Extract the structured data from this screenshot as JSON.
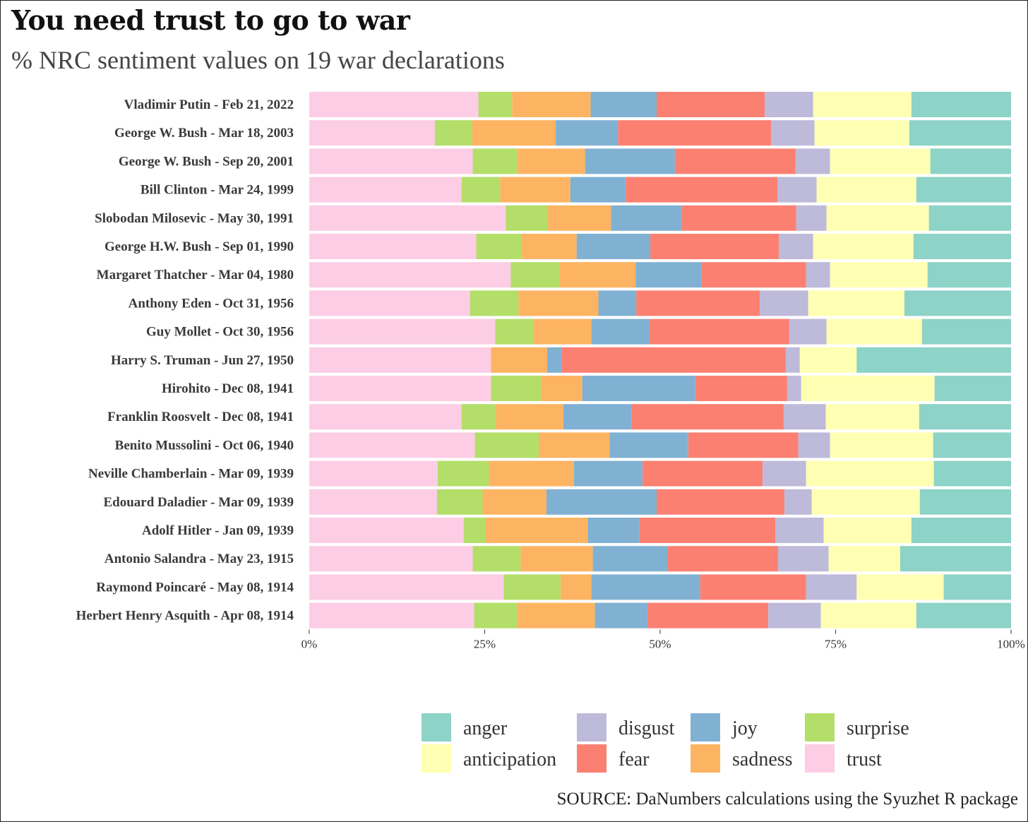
{
  "title": "You need trust to go to war",
  "subtitle": "% NRC sentiment values on 19 war declarations",
  "source": "SOURCE: DaNumbers calculations using the Syuzhet R package",
  "chart_data": {
    "type": "bar",
    "orientation": "horizontal",
    "stacked": "percent",
    "xlim": [
      0,
      100
    ],
    "x_ticks": [
      "0%",
      "25%",
      "50%",
      "75%",
      "100%"
    ],
    "grid": false,
    "legend_position": "bottom",
    "stack_order": [
      "trust",
      "surprise",
      "sadness",
      "joy",
      "fear",
      "disgust",
      "anticipation",
      "anger"
    ],
    "legend_order": [
      "anger",
      "anticipation",
      "disgust",
      "fear",
      "joy",
      "sadness",
      "surprise",
      "trust"
    ],
    "colors": {
      "anger": "#8dd3c7",
      "anticipation": "#ffffb3",
      "disgust": "#bebada",
      "fear": "#fb8072",
      "joy": "#80b1d3",
      "sadness": "#fdb462",
      "surprise": "#b3de69",
      "trust": "#fccde5"
    },
    "categories": [
      "Vladimir Putin - Feb 21, 2022",
      "George W. Bush - Mar 18, 2003",
      "George W. Bush - Sep 20, 2001",
      "Bill Clinton - Mar 24, 1999",
      "Slobodan Milosevic - May 30, 1991",
      "George H.W. Bush - Sep 01, 1990",
      "Margaret Thatcher - Mar 04, 1980",
      "Anthony Eden - Oct 31, 1956",
      "Guy Mollet - Oct 30, 1956",
      "Harry S. Truman - Jun 27, 1950",
      "Hirohito - Dec 08, 1941",
      "Franklin Roosvelt - Dec 08, 1941",
      "Benito Mussolini - Oct 06, 1940",
      "Neville Chamberlain - Mar 09, 1939",
      "Edouard Daladier - Mar 09, 1939",
      "Adolf Hitler - Jan 09, 1939",
      "Antonio Salandra - May 23, 1915",
      "Raymond Poincaré - May 08, 1914",
      "Herbert Henry Asquith - Apr 08, 1914"
    ],
    "series": [
      {
        "name": "trust",
        "values": [
          24.1,
          17.9,
          23.3,
          21.7,
          28.0,
          23.8,
          28.7,
          22.9,
          26.5,
          25.9,
          25.9,
          21.7,
          23.6,
          18.3,
          18.2,
          22.0,
          23.3,
          27.7,
          23.5
        ]
      },
      {
        "name": "surprise",
        "values": [
          4.8,
          5.3,
          6.3,
          5.5,
          5.9,
          6.4,
          6.9,
          6.9,
          5.4,
          0.0,
          7.1,
          4.9,
          9.1,
          7.3,
          6.5,
          3.1,
          6.8,
          8.1,
          6.1
        ]
      },
      {
        "name": "sadness",
        "values": [
          11.2,
          11.9,
          9.7,
          10.0,
          9.1,
          7.9,
          10.9,
          11.4,
          8.3,
          8.0,
          5.9,
          9.6,
          10.1,
          12.1,
          9.1,
          14.6,
          10.3,
          4.4,
          11.1
        ]
      },
      {
        "name": "joy",
        "values": [
          9.4,
          8.9,
          12.8,
          7.9,
          10.1,
          10.5,
          9.4,
          5.4,
          8.3,
          2.1,
          16.1,
          9.7,
          11.2,
          9.8,
          15.7,
          7.3,
          10.6,
          15.5,
          7.5
        ]
      },
      {
        "name": "fear",
        "values": [
          15.4,
          21.8,
          17.2,
          21.6,
          16.3,
          18.3,
          14.9,
          17.6,
          19.9,
          31.9,
          13.1,
          21.7,
          15.7,
          17.1,
          18.2,
          19.4,
          15.8,
          15.1,
          17.2
        ]
      },
      {
        "name": "disgust",
        "values": [
          6.9,
          6.2,
          4.9,
          5.6,
          4.3,
          4.9,
          3.4,
          6.9,
          5.3,
          2.0,
          2.0,
          6.0,
          4.5,
          6.2,
          3.9,
          6.9,
          7.2,
          7.2,
          7.5
        ]
      },
      {
        "name": "anticipation",
        "values": [
          14.0,
          13.5,
          14.3,
          14.2,
          14.6,
          14.3,
          13.9,
          13.7,
          13.6,
          8.1,
          19.0,
          13.3,
          14.7,
          18.2,
          15.4,
          12.5,
          10.2,
          12.4,
          13.6
        ]
      },
      {
        "name": "anger",
        "values": [
          14.2,
          14.5,
          11.5,
          13.5,
          11.7,
          13.9,
          11.9,
          15.2,
          12.7,
          22.0,
          10.9,
          13.1,
          11.1,
          11.0,
          13.0,
          14.2,
          15.8,
          9.6,
          13.5
        ]
      }
    ]
  }
}
